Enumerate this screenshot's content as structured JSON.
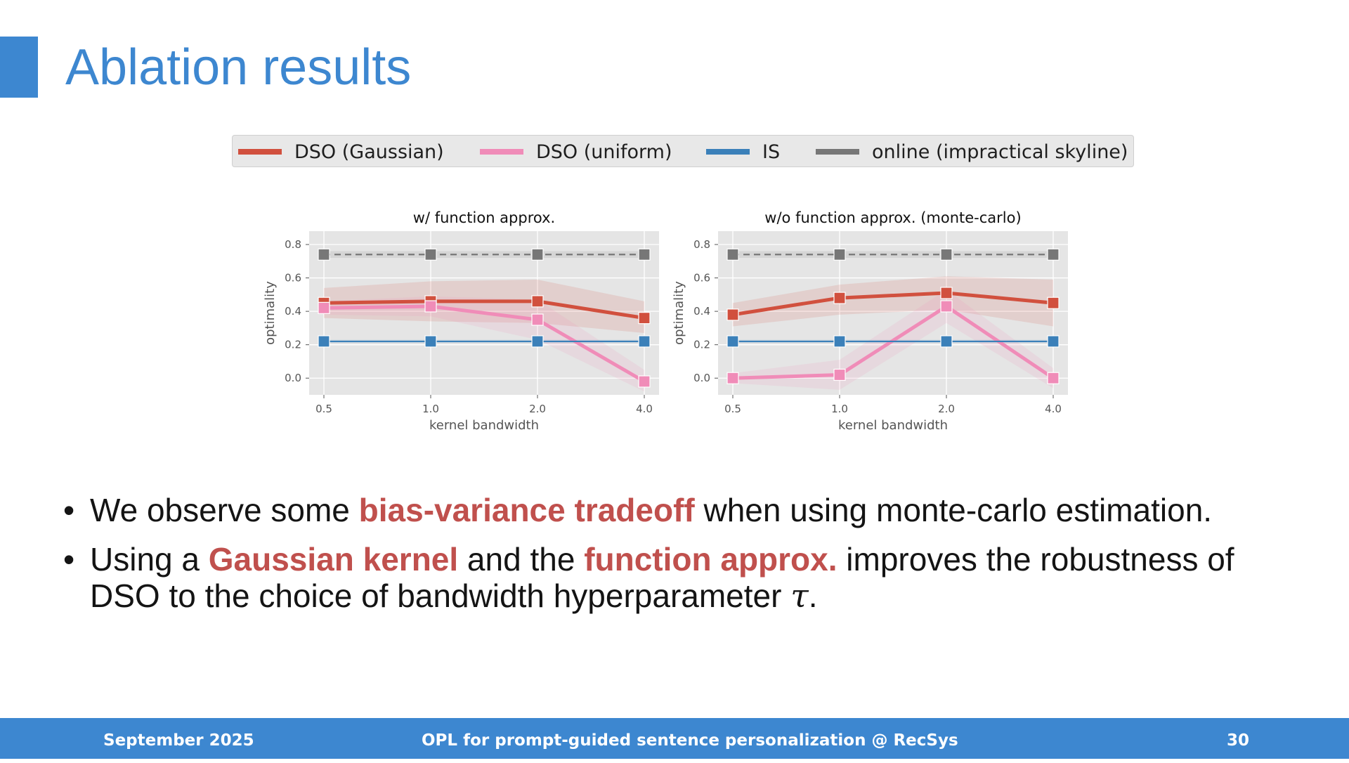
{
  "slide": {
    "title": "Ablation results",
    "page_number": "30",
    "footer_date": "September 2025",
    "footer_center": "OPL for prompt-guided sentence personalization @ RecSys"
  },
  "colors": {
    "accent": "#3d87d0",
    "highlight": "#c0504d",
    "series": [
      "#d1503e",
      "#f08cb8",
      "#3b80b9",
      "#777777"
    ]
  },
  "legend": {
    "items": [
      {
        "label": "DSO (Gaussian)",
        "color": "#d1503e"
      },
      {
        "label": "DSO (uniform)",
        "color": "#f08cb8"
      },
      {
        "label": "IS",
        "color": "#3b80b9"
      },
      {
        "label": "online (impractical skyline)",
        "color": "#777777"
      }
    ]
  },
  "bullets": [
    {
      "parts": [
        {
          "text": "We observe some ",
          "hl": false
        },
        {
          "text": "bias-variance tradeoff",
          "hl": true
        },
        {
          "text": " when using monte-carlo estimation.",
          "hl": false
        }
      ]
    },
    {
      "parts": [
        {
          "text": "Using a ",
          "hl": false
        },
        {
          "text": "Gaussian kernel",
          "hl": true
        },
        {
          "text": " and the ",
          "hl": false
        },
        {
          "text": "function approx.",
          "hl": true
        },
        {
          "text": " improves the robustness of DSO to the choice of bandwidth hyperparameter ",
          "hl": false
        },
        {
          "text": "τ",
          "hl": false,
          "math": true
        },
        {
          "text": ".",
          "hl": false
        }
      ]
    }
  ],
  "chart_data": [
    {
      "type": "line",
      "title": "w/ function approx.",
      "xlabel": "kernel bandwidth",
      "ylabel": "optimality",
      "x": [
        "0.5",
        "1.0",
        "2.0",
        "4.0"
      ],
      "ylim": [
        -0.1,
        0.88
      ],
      "yticks": [
        "0.0",
        "0.2",
        "0.4",
        "0.6",
        "0.8"
      ],
      "grid": true,
      "series": [
        {
          "name": "online (impractical skyline)",
          "values": [
            0.74,
            0.74,
            0.74,
            0.74
          ],
          "band": [
            0.72,
            0.76
          ],
          "dashed": true
        },
        {
          "name": "DSO (Gaussian)",
          "values": [
            0.45,
            0.46,
            0.46,
            0.36
          ],
          "band_low": [
            0.36,
            0.34,
            0.33,
            0.27
          ],
          "band_high": [
            0.54,
            0.58,
            0.59,
            0.46
          ]
        },
        {
          "name": "DSO (uniform)",
          "values": [
            0.42,
            0.43,
            0.35,
            -0.02
          ],
          "band_low": [
            0.38,
            0.37,
            0.23,
            -0.08
          ],
          "band_high": [
            0.46,
            0.49,
            0.47,
            0.05
          ]
        },
        {
          "name": "IS",
          "values": [
            0.22,
            0.22,
            0.22,
            0.22
          ],
          "band_low": [
            0.21,
            0.21,
            0.21,
            0.21
          ],
          "band_high": [
            0.23,
            0.23,
            0.23,
            0.23
          ]
        }
      ]
    },
    {
      "type": "line",
      "title": "w/o function approx. (monte-carlo)",
      "xlabel": "kernel bandwidth",
      "ylabel": "optimality",
      "x": [
        "0.5",
        "1.0",
        "2.0",
        "4.0"
      ],
      "ylim": [
        -0.1,
        0.88
      ],
      "yticks": [
        "0.0",
        "0.2",
        "0.4",
        "0.6",
        "0.8"
      ],
      "grid": true,
      "series": [
        {
          "name": "online (impractical skyline)",
          "values": [
            0.74,
            0.74,
            0.74,
            0.74
          ],
          "band": [
            0.72,
            0.76
          ],
          "dashed": true
        },
        {
          "name": "DSO (Gaussian)",
          "values": [
            0.38,
            0.48,
            0.51,
            0.45
          ],
          "band_low": [
            0.31,
            0.38,
            0.41,
            0.31
          ],
          "band_high": [
            0.45,
            0.56,
            0.61,
            0.59
          ]
        },
        {
          "name": "DSO (uniform)",
          "values": [
            0.0,
            0.02,
            0.43,
            0.0
          ],
          "band_low": [
            -0.03,
            -0.07,
            0.33,
            -0.06
          ],
          "band_high": [
            0.03,
            0.11,
            0.53,
            0.06
          ]
        },
        {
          "name": "IS",
          "values": [
            0.22,
            0.22,
            0.22,
            0.22
          ],
          "band_low": [
            0.21,
            0.21,
            0.21,
            0.21
          ],
          "band_high": [
            0.23,
            0.23,
            0.23,
            0.23
          ]
        }
      ]
    }
  ]
}
